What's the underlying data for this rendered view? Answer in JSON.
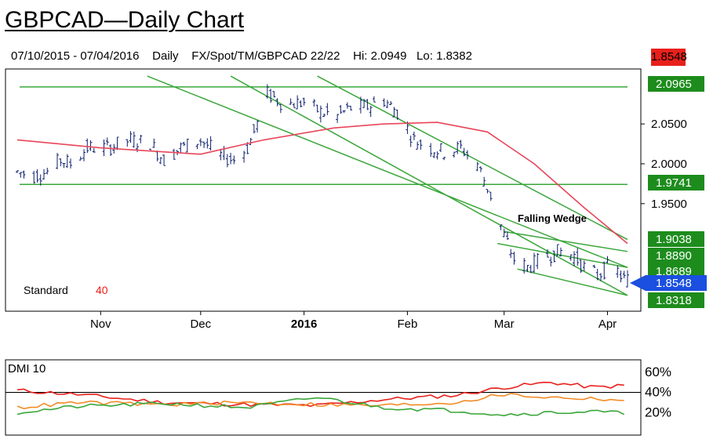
{
  "header": {
    "title": "GBPCAD—Daily Chart",
    "date_range": "07/10/2015 - 07/04/2016",
    "timeframe": "Daily",
    "symbol": "FX/Spot/TM/GBPCAD 22/22",
    "hi": "Hi: 2.0949",
    "lo": "Lo: 1.8382",
    "last": "1.8548"
  },
  "chart_data": [
    {
      "type": "candlestick",
      "title": "",
      "x_ticks": [
        "Nov",
        "Dec",
        "2016",
        "Feb",
        "Mar",
        "Apr"
      ],
      "y_ticks": [
        "2.0500",
        "2.0000",
        "1.9500"
      ],
      "ylim": [
        1.82,
        2.115
      ],
      "level_labels": [
        "2.0965",
        "1.9741",
        "1.9038",
        "1.8890",
        "1.8689",
        "1.8548",
        "1.8318"
      ],
      "annotation": "Falling Wedge",
      "indicator_label": "Standard",
      "indicator_value": "40",
      "price_path": [
        [
          "2015-10-07",
          1.99
        ],
        [
          "2015-10-12",
          1.985
        ],
        [
          "2015-10-16",
          1.99
        ],
        [
          "2015-10-20",
          2.005
        ],
        [
          "2015-10-23",
          2.0
        ],
        [
          "2015-10-28",
          2.02
        ],
        [
          "2015-11-03",
          2.02
        ],
        [
          "2015-11-10",
          2.03
        ],
        [
          "2015-11-16",
          2.025
        ],
        [
          "2015-11-20",
          2.005
        ],
        [
          "2015-11-25",
          2.02
        ],
        [
          "2015-12-01",
          2.03
        ],
        [
          "2015-12-07",
          2.01
        ],
        [
          "2015-12-11",
          2.005
        ],
        [
          "2015-12-15",
          2.02
        ],
        [
          "2015-12-18",
          2.05
        ],
        [
          "2015-12-21",
          2.088
        ],
        [
          "2015-12-26",
          2.075
        ],
        [
          "2016-01-01",
          2.077
        ],
        [
          "2016-01-06",
          2.065
        ],
        [
          "2016-01-11",
          2.06
        ],
        [
          "2016-01-15",
          2.07
        ],
        [
          "2016-01-20",
          2.072
        ],
        [
          "2016-01-25",
          2.08
        ],
        [
          "2016-01-29",
          2.065
        ],
        [
          "2016-02-03",
          2.03
        ],
        [
          "2016-02-08",
          2.02
        ],
        [
          "2016-02-12",
          2.015
        ],
        [
          "2016-02-17",
          2.02
        ],
        [
          "2016-02-22",
          2.0
        ],
        [
          "2016-02-26",
          1.96
        ],
        [
          "2016-03-01",
          1.91
        ],
        [
          "2016-03-04",
          1.88
        ],
        [
          "2016-03-08",
          1.87
        ],
        [
          "2016-03-14",
          1.885
        ],
        [
          "2016-03-18",
          1.89
        ],
        [
          "2016-03-22",
          1.885
        ],
        [
          "2016-03-25",
          1.87
        ],
        [
          "2016-03-29",
          1.86
        ],
        [
          "2016-04-01",
          1.87
        ],
        [
          "2016-04-04",
          1.865
        ],
        [
          "2016-04-06",
          1.855
        ],
        [
          "2016-04-07",
          1.8548
        ]
      ],
      "moving_average": [
        [
          "2015-10-07",
          2.03
        ],
        [
          "2015-11-01",
          2.02
        ],
        [
          "2015-12-01",
          2.012
        ],
        [
          "2015-12-20",
          2.03
        ],
        [
          "2016-01-10",
          2.045
        ],
        [
          "2016-01-25",
          2.05
        ],
        [
          "2016-02-10",
          2.052
        ],
        [
          "2016-02-25",
          2.04
        ],
        [
          "2016-03-10",
          2.0
        ],
        [
          "2016-03-25",
          1.945
        ],
        [
          "2016-04-07",
          1.9
        ]
      ],
      "horizontal_levels": [
        2.0965,
        1.9741
      ],
      "trendlines": [
        [
          [
            "2015-11-15",
            2.11
          ],
          [
            "2016-04-07",
            1.87
          ]
        ],
        [
          [
            "2016-01-05",
            2.11
          ],
          [
            "2016-04-07",
            1.905
          ]
        ],
        [
          [
            "2015-12-10",
            2.11
          ],
          [
            "2016-04-07",
            1.835
          ]
        ],
        [
          [
            "2016-02-28",
            1.9
          ],
          [
            "2016-04-07",
            1.87
          ]
        ],
        [
          [
            "2016-03-01",
            1.915
          ],
          [
            "2016-04-07",
            1.89
          ]
        ],
        [
          [
            "2016-03-05",
            1.868
          ],
          [
            "2016-04-07",
            1.835
          ]
        ]
      ]
    },
    {
      "type": "line",
      "title": "DMI 10",
      "y_ticks": [
        "60%",
        "40%",
        "20%"
      ],
      "ylim": [
        0,
        70
      ],
      "reference_level": 40,
      "series": [
        {
          "color": "#e8201c",
          "points": [
            [
              "2015-10-07",
              42
            ],
            [
              "2015-10-25",
              38
            ],
            [
              "2015-11-20",
              30
            ],
            [
              "2015-12-15",
              28
            ],
            [
              "2016-01-05",
              27
            ],
            [
              "2016-01-25",
              33
            ],
            [
              "2016-02-15",
              37
            ],
            [
              "2016-03-01",
              45
            ],
            [
              "2016-03-15",
              50
            ],
            [
              "2016-03-28",
              45
            ],
            [
              "2016-04-07",
              47
            ]
          ]
        },
        {
          "color": "#f28c28",
          "points": [
            [
              "2015-10-07",
              25
            ],
            [
              "2015-10-25",
              30
            ],
            [
              "2015-11-20",
              28
            ],
            [
              "2015-12-15",
              30
            ],
            [
              "2016-01-05",
              28
            ],
            [
              "2016-01-25",
              27
            ],
            [
              "2016-02-15",
              30
            ],
            [
              "2016-03-01",
              38
            ],
            [
              "2016-03-15",
              35
            ],
            [
              "2016-03-28",
              34
            ],
            [
              "2016-04-07",
              32
            ]
          ]
        },
        {
          "color": "#3aa63a",
          "points": [
            [
              "2015-10-07",
              20
            ],
            [
              "2015-10-25",
              26
            ],
            [
              "2015-11-20",
              29
            ],
            [
              "2015-12-15",
              25
            ],
            [
              "2016-01-05",
              35
            ],
            [
              "2016-01-25",
              25
            ],
            [
              "2016-02-15",
              22
            ],
            [
              "2016-03-01",
              18
            ],
            [
              "2016-03-15",
              20
            ],
            [
              "2016-03-28",
              21
            ],
            [
              "2016-04-07",
              19
            ]
          ]
        }
      ]
    }
  ],
  "colors": {
    "level_badge": "#1d8c1d",
    "last_badge": "#e8201c",
    "pointer": "#1a4fe0",
    "candles": "#0d1f6b",
    "ma": "#e8465a",
    "lines": "#3aa63a"
  }
}
